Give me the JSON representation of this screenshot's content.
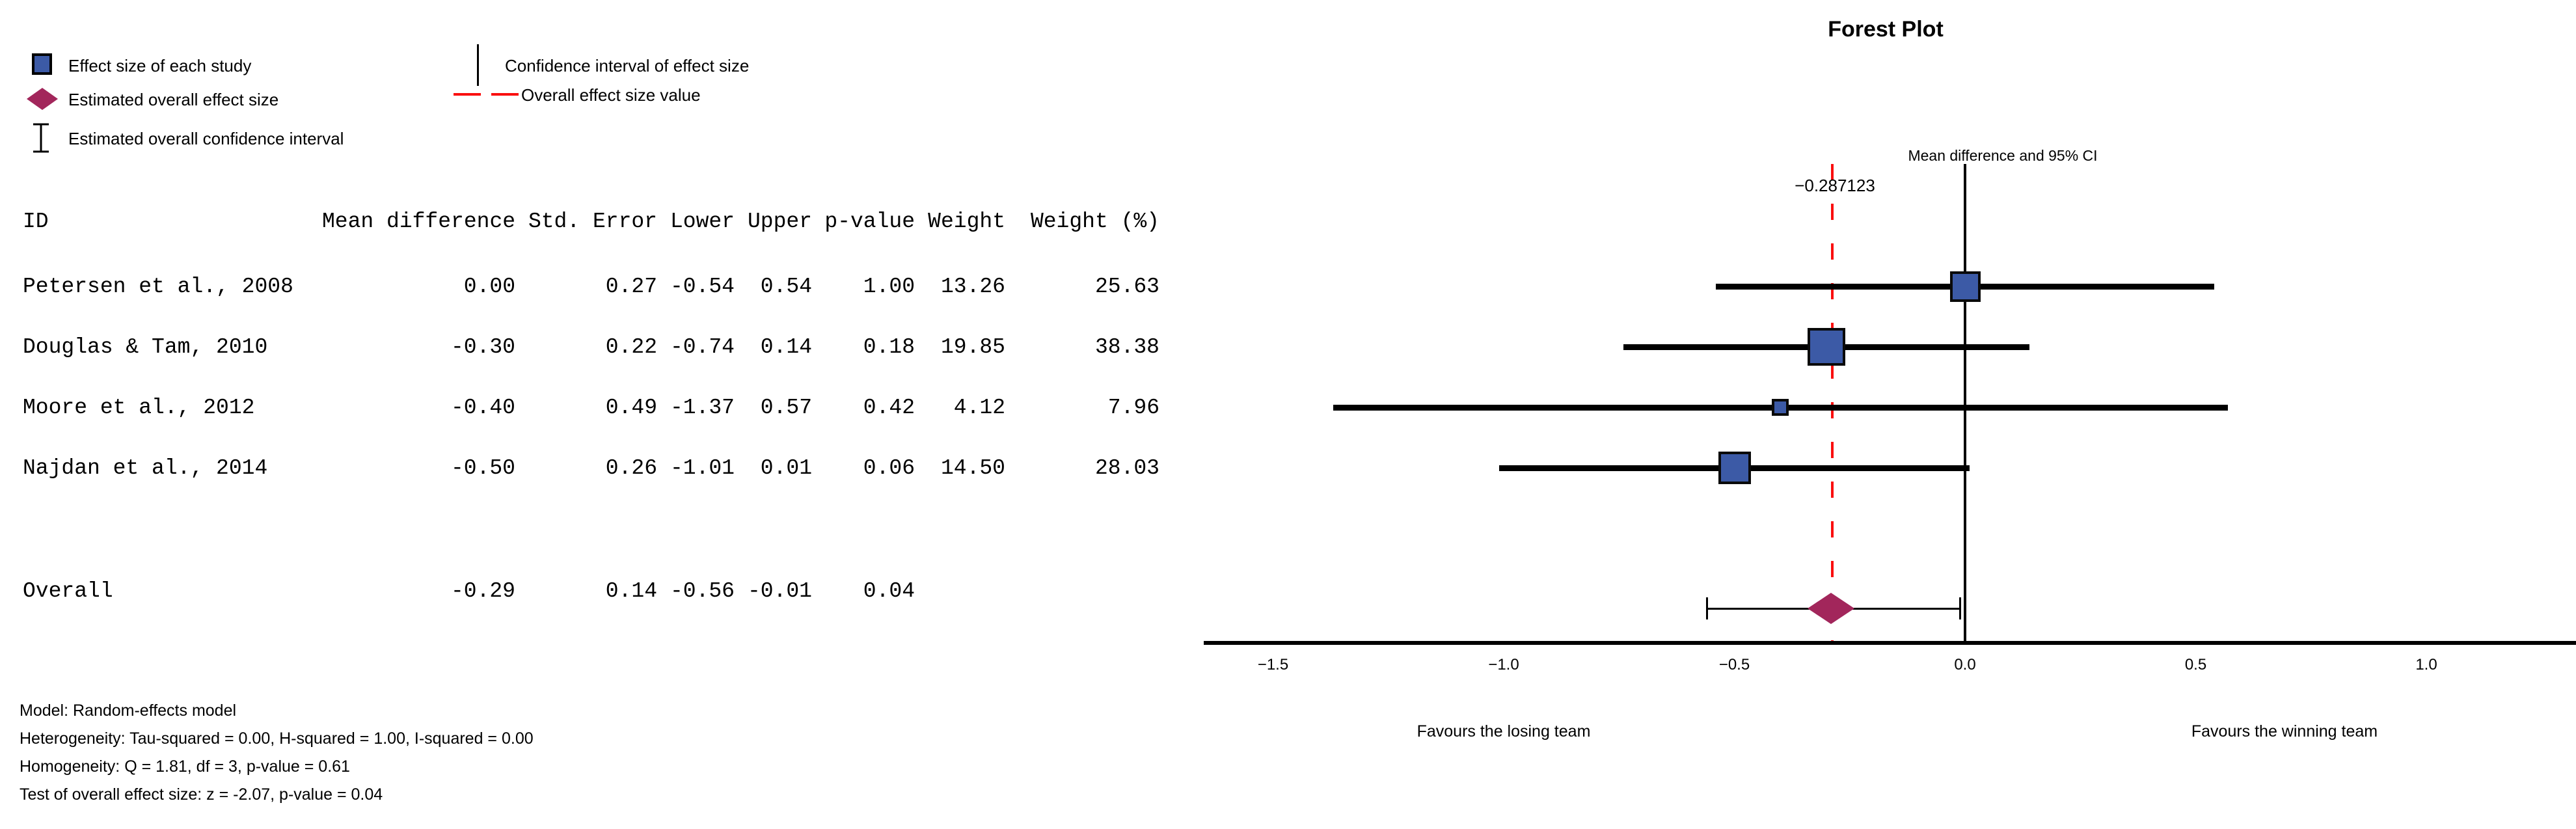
{
  "legend": {
    "effect_size": "Effect size of each study",
    "overall_effect": "Estimated overall effect size",
    "overall_ci": "Estimated overall confidence interval",
    "ci_effect": "Confidence interval of effect size",
    "overall_value": "Overall effect size value"
  },
  "table": {
    "headers": [
      "ID",
      "Mean difference",
      "Std. Error",
      "Lower",
      "Upper",
      "p-value",
      "Weight",
      "Weight (%)"
    ],
    "rows": [
      [
        "Petersen et al., 2008",
        "0.00",
        "0.27",
        "-0.54",
        "0.54",
        "1.00",
        "13.26",
        "25.63"
      ],
      [
        "Douglas & Tam, 2010",
        "-0.30",
        "0.22",
        "-0.74",
        "0.14",
        "0.18",
        "19.85",
        "38.38"
      ],
      [
        "Moore et al., 2012",
        "-0.40",
        "0.49",
        "-1.37",
        "0.57",
        "0.42",
        "4.12",
        "7.96"
      ],
      [
        "Najdan et al., 2014",
        "-0.50",
        "0.26",
        "-1.01",
        "0.01",
        "0.06",
        "14.50",
        "28.03"
      ]
    ],
    "overall_row": [
      "Overall",
      "-0.29",
      "0.14",
      "-0.56",
      "-0.01",
      "0.04",
      "",
      ""
    ]
  },
  "notes": [
    "Model: Random-effects model",
    "Heterogeneity: Tau-squared = 0.00, H-squared = 1.00, I-squared = 0.00",
    "Homogeneity: Q = 1.81, df = 3, p-value = 0.61",
    "Test of overall effect size: z = -2.07, p-value = 0.04"
  ],
  "plot": {
    "title": "Forest Plot",
    "subtitle": "Mean difference and 95% CI",
    "overall_line_label": "−0.287123",
    "favours_left": "Favours the losing team",
    "favours_right": "Favours the winning team"
  },
  "chart_data": {
    "type": "forest",
    "title": "Forest Plot",
    "x_axis_title": "Mean difference and 95% CI",
    "xlim": [
      -1.65,
      1.32
    ],
    "x_ticks": [
      -1.5,
      -1.0,
      -0.5,
      0.0,
      0.5,
      1.0
    ],
    "x_tick_labels": [
      "−1.5",
      "−1.0",
      "−0.5",
      "0.0",
      "0.5",
      "1.0"
    ],
    "grid": false,
    "overall_effect_value": -0.287123,
    "studies": [
      {
        "id": "Petersen et al., 2008",
        "mean": 0.0,
        "std_error": 0.27,
        "lower": -0.54,
        "upper": 0.54,
        "p_value": 1.0,
        "weight": 13.26,
        "weight_pct": 25.63
      },
      {
        "id": "Douglas & Tam, 2010",
        "mean": -0.3,
        "std_error": 0.22,
        "lower": -0.74,
        "upper": 0.14,
        "p_value": 0.18,
        "weight": 19.85,
        "weight_pct": 38.38
      },
      {
        "id": "Moore et al., 2012",
        "mean": -0.4,
        "std_error": 0.49,
        "lower": -1.37,
        "upper": 0.57,
        "p_value": 0.42,
        "weight": 4.12,
        "weight_pct": 7.96
      },
      {
        "id": "Najdan et al., 2014",
        "mean": -0.5,
        "std_error": 0.26,
        "lower": -1.01,
        "upper": 0.01,
        "p_value": 0.06,
        "weight": 14.5,
        "weight_pct": 28.03
      }
    ],
    "overall": {
      "id": "Overall",
      "mean": -0.29,
      "std_error": 0.14,
      "lower": -0.56,
      "upper": -0.01,
      "p_value": 0.04
    },
    "annotations": [
      "Favours the losing team",
      "Favours the winning team",
      "−0.287123"
    ],
    "colors": {
      "study_square": "#3C5AA6",
      "square_border": "#0a0a0a",
      "overall_diamond": "#A2265B",
      "overall_effect_line": "#fa0f0f",
      "ci_line": "#000000"
    }
  }
}
